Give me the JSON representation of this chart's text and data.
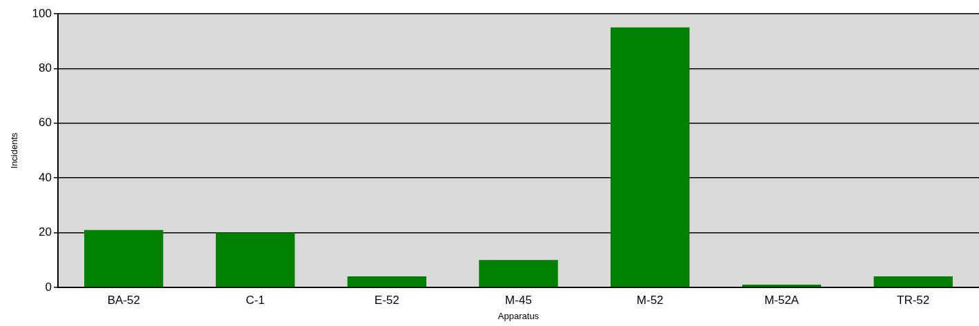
{
  "chart_data": {
    "type": "bar",
    "xlabel": "Apparatus",
    "ylabel": "Incidents",
    "categories": [
      "BA-52",
      "C-1",
      "E-52",
      "M-45",
      "M-52",
      "M-52A",
      "TR-52"
    ],
    "values": [
      21,
      20,
      4,
      10,
      95,
      1,
      4
    ],
    "color": "#008000",
    "ylim": [
      0,
      100
    ],
    "yticks": [
      0,
      20,
      40,
      60,
      80,
      100
    ],
    "grid": "y"
  }
}
